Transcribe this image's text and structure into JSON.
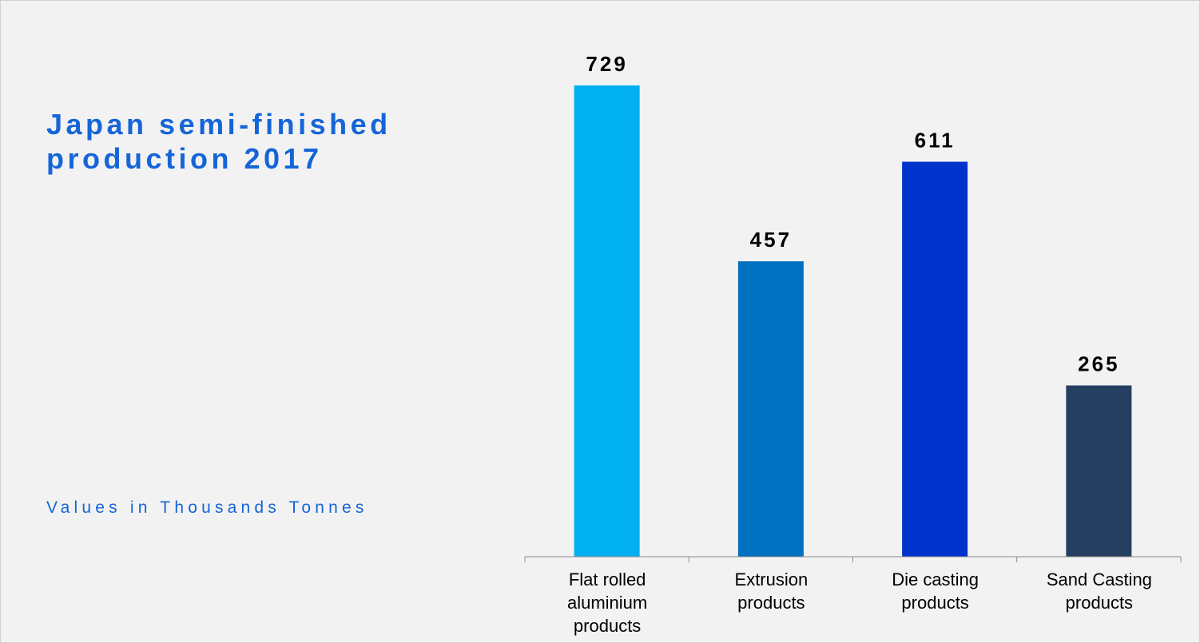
{
  "header": {
    "title": "Japan semi-finished production 2017",
    "subtitle": "Values in Thousands Tonnes"
  },
  "chart_data": {
    "type": "bar",
    "title": "Japan semi-finished production 2017",
    "subtitle": "Values in Thousands Tonnes",
    "categories": [
      [
        "Flat rolled",
        "aluminium",
        "products"
      ],
      [
        "Extrusion",
        "products"
      ],
      [
        "Die casting",
        "products"
      ],
      [
        "Sand Casting",
        "products"
      ]
    ],
    "values": [
      729,
      457,
      611,
      265
    ],
    "value_labels": [
      "729",
      "457",
      "611",
      "265"
    ],
    "colors": [
      "#00b0f0",
      "#0070c0",
      "#0033cc",
      "#243f60"
    ],
    "ylim": [
      0,
      729
    ],
    "grid": false,
    "legend": "none",
    "xlabel": "",
    "ylabel": ""
  }
}
